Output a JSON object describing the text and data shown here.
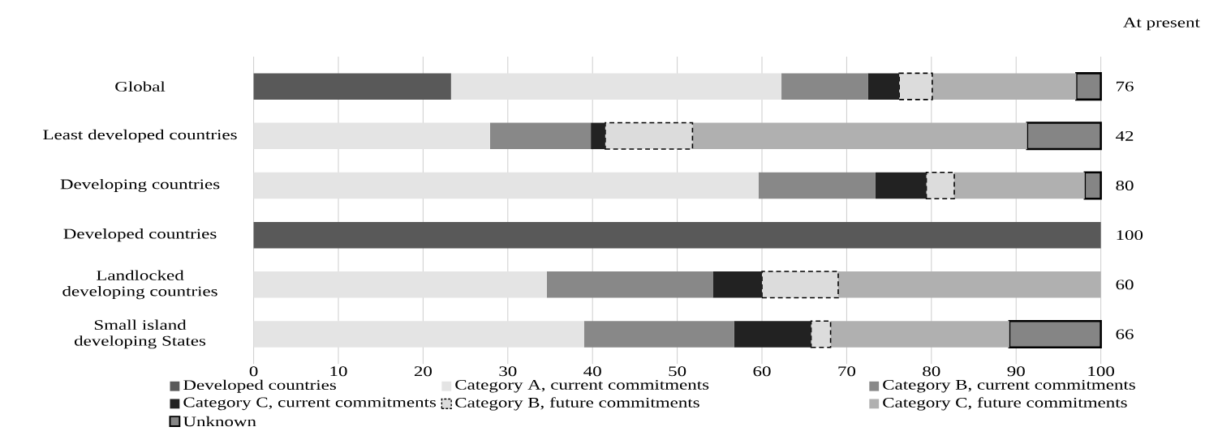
{
  "chart_data": {
    "type": "bar",
    "orientation": "horizontal",
    "stacked": true,
    "categories": [
      "Global",
      "Least developed countries",
      "Developing countries",
      "Developed countries",
      "Landlocked developing countries",
      "Small island developing States"
    ],
    "series": [
      {
        "name": "Developed countries",
        "color": "#595959",
        "values": [
          23.3,
          0,
          0,
          100,
          0,
          0
        ]
      },
      {
        "name": "Category A, current commitments",
        "color": "#e4e4e4",
        "values": [
          39.0,
          27.9,
          59.6,
          0,
          34.6,
          39.0
        ]
      },
      {
        "name": "Category B, current commitments",
        "color": "#888888",
        "values": [
          10.2,
          11.9,
          13.8,
          0,
          19.6,
          17.7
        ]
      },
      {
        "name": "Category C, current commitments",
        "color": "#222222",
        "values": [
          3.7,
          1.7,
          6.0,
          0,
          5.8,
          9.1
        ]
      },
      {
        "name": "Category B, future commitments",
        "color": "#dcdcdc",
        "line_style": "dashed",
        "values": [
          3.9,
          10.3,
          3.3,
          0,
          9.0,
          2.3
        ]
      },
      {
        "name": "Category C, future commitments",
        "color": "#b0b0b0",
        "values": [
          17.0,
          39.5,
          15.4,
          0,
          31.0,
          21.1
        ]
      },
      {
        "name": "Unknown",
        "color": "#858585",
        "line_style": "solid",
        "values": [
          2.9,
          8.7,
          1.9,
          0,
          0,
          10.8
        ]
      }
    ],
    "xlim": [
      0,
      100
    ],
    "xticks": [
      0,
      10,
      20,
      30,
      40,
      50,
      60,
      70,
      80,
      90,
      100
    ],
    "grid": "x",
    "legend": "bottom",
    "annotations": [
      "At present",
      "76",
      "42",
      "80",
      "100",
      "60",
      "66"
    ]
  }
}
